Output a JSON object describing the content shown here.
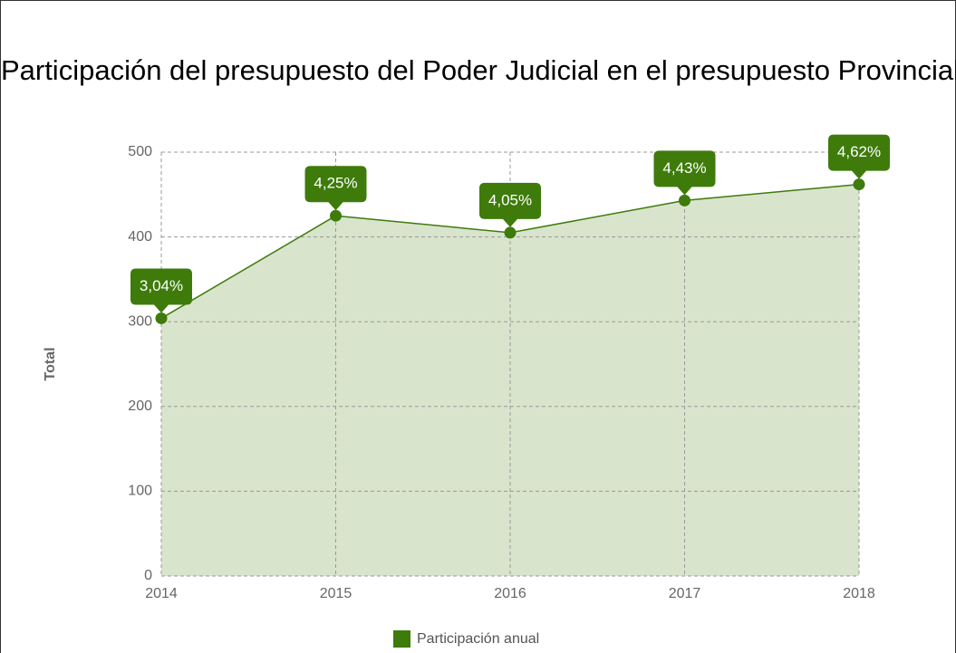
{
  "chart_data": {
    "type": "line",
    "title": "Participación del presupuesto del Poder Judicial en el presupuesto Provincial",
    "y_label": "Total",
    "categories": [
      "2014",
      "2015",
      "2016",
      "2017",
      "2018"
    ],
    "series": [
      {
        "name": "Participación anual",
        "color": "#3e7b0b",
        "fill": "#d9e4cc",
        "values": [
          304,
          425,
          405,
          443,
          462
        ],
        "value_labels": [
          "3,04%",
          "4,25%",
          "4,05%",
          "4,43%",
          "4,62%"
        ]
      }
    ],
    "ylim": [
      0,
      500
    ],
    "yticks": [
      0,
      100,
      200,
      300,
      400,
      500
    ],
    "grid": true,
    "legend": "bottom"
  }
}
